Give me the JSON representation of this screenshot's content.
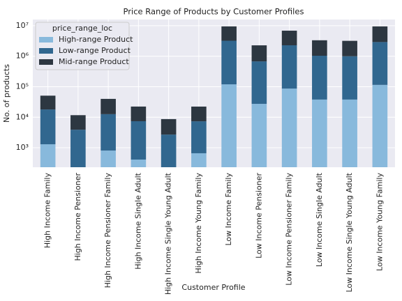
{
  "chart_data": {
    "type": "bar",
    "stacked": true,
    "log_scale": true,
    "title": "Price Range of Products by Customer Profiles",
    "x_label": "Customer Profile",
    "y_label": "No. of products",
    "legend_title": "price_range_loc",
    "legend_position": "upper left",
    "grid": true,
    "categories": [
      "High Income Family",
      "High Income Pensioner",
      "High Income Pensioner Family",
      "High Income Single Adult",
      "High Income Single Young Adult",
      "High Income Young Family",
      "Low Income Family",
      "Low Income Pensioner",
      "Low Income Pensioner Family",
      "Low Income Single Adult",
      "Low Income Single Young Adult",
      "Low Income Young Family"
    ],
    "series": [
      {
        "name": "High-range Product",
        "color": "#88b9dc",
        "values": [
          1300,
          0,
          810,
          410,
          0,
          660,
          120000,
          27500,
          87000,
          38000,
          38000,
          115000
        ]
      },
      {
        "name": "Low-range Product",
        "color": "#31678f",
        "values": [
          16700,
          3900,
          11800,
          7000,
          2700,
          6700,
          3100000,
          650000,
          2200000,
          1000000,
          960000,
          2800000
        ]
      },
      {
        "name": "Mid-range Product",
        "color": "#2d3741",
        "values": [
          33000,
          7800,
          27400,
          15000,
          6000,
          15000,
          6300000,
          1600000,
          4600000,
          2300000,
          2200000,
          6600000
        ]
      }
    ],
    "ylim": [
      230,
      16000000
    ],
    "yticks": [
      {
        "value": 1000,
        "label": "10³"
      },
      {
        "value": 10000,
        "label": "10⁴"
      },
      {
        "value": 100000,
        "label": "10⁵"
      },
      {
        "value": 1000000,
        "label": "10⁶"
      },
      {
        "value": 10000000,
        "label": "10⁷"
      }
    ]
  }
}
